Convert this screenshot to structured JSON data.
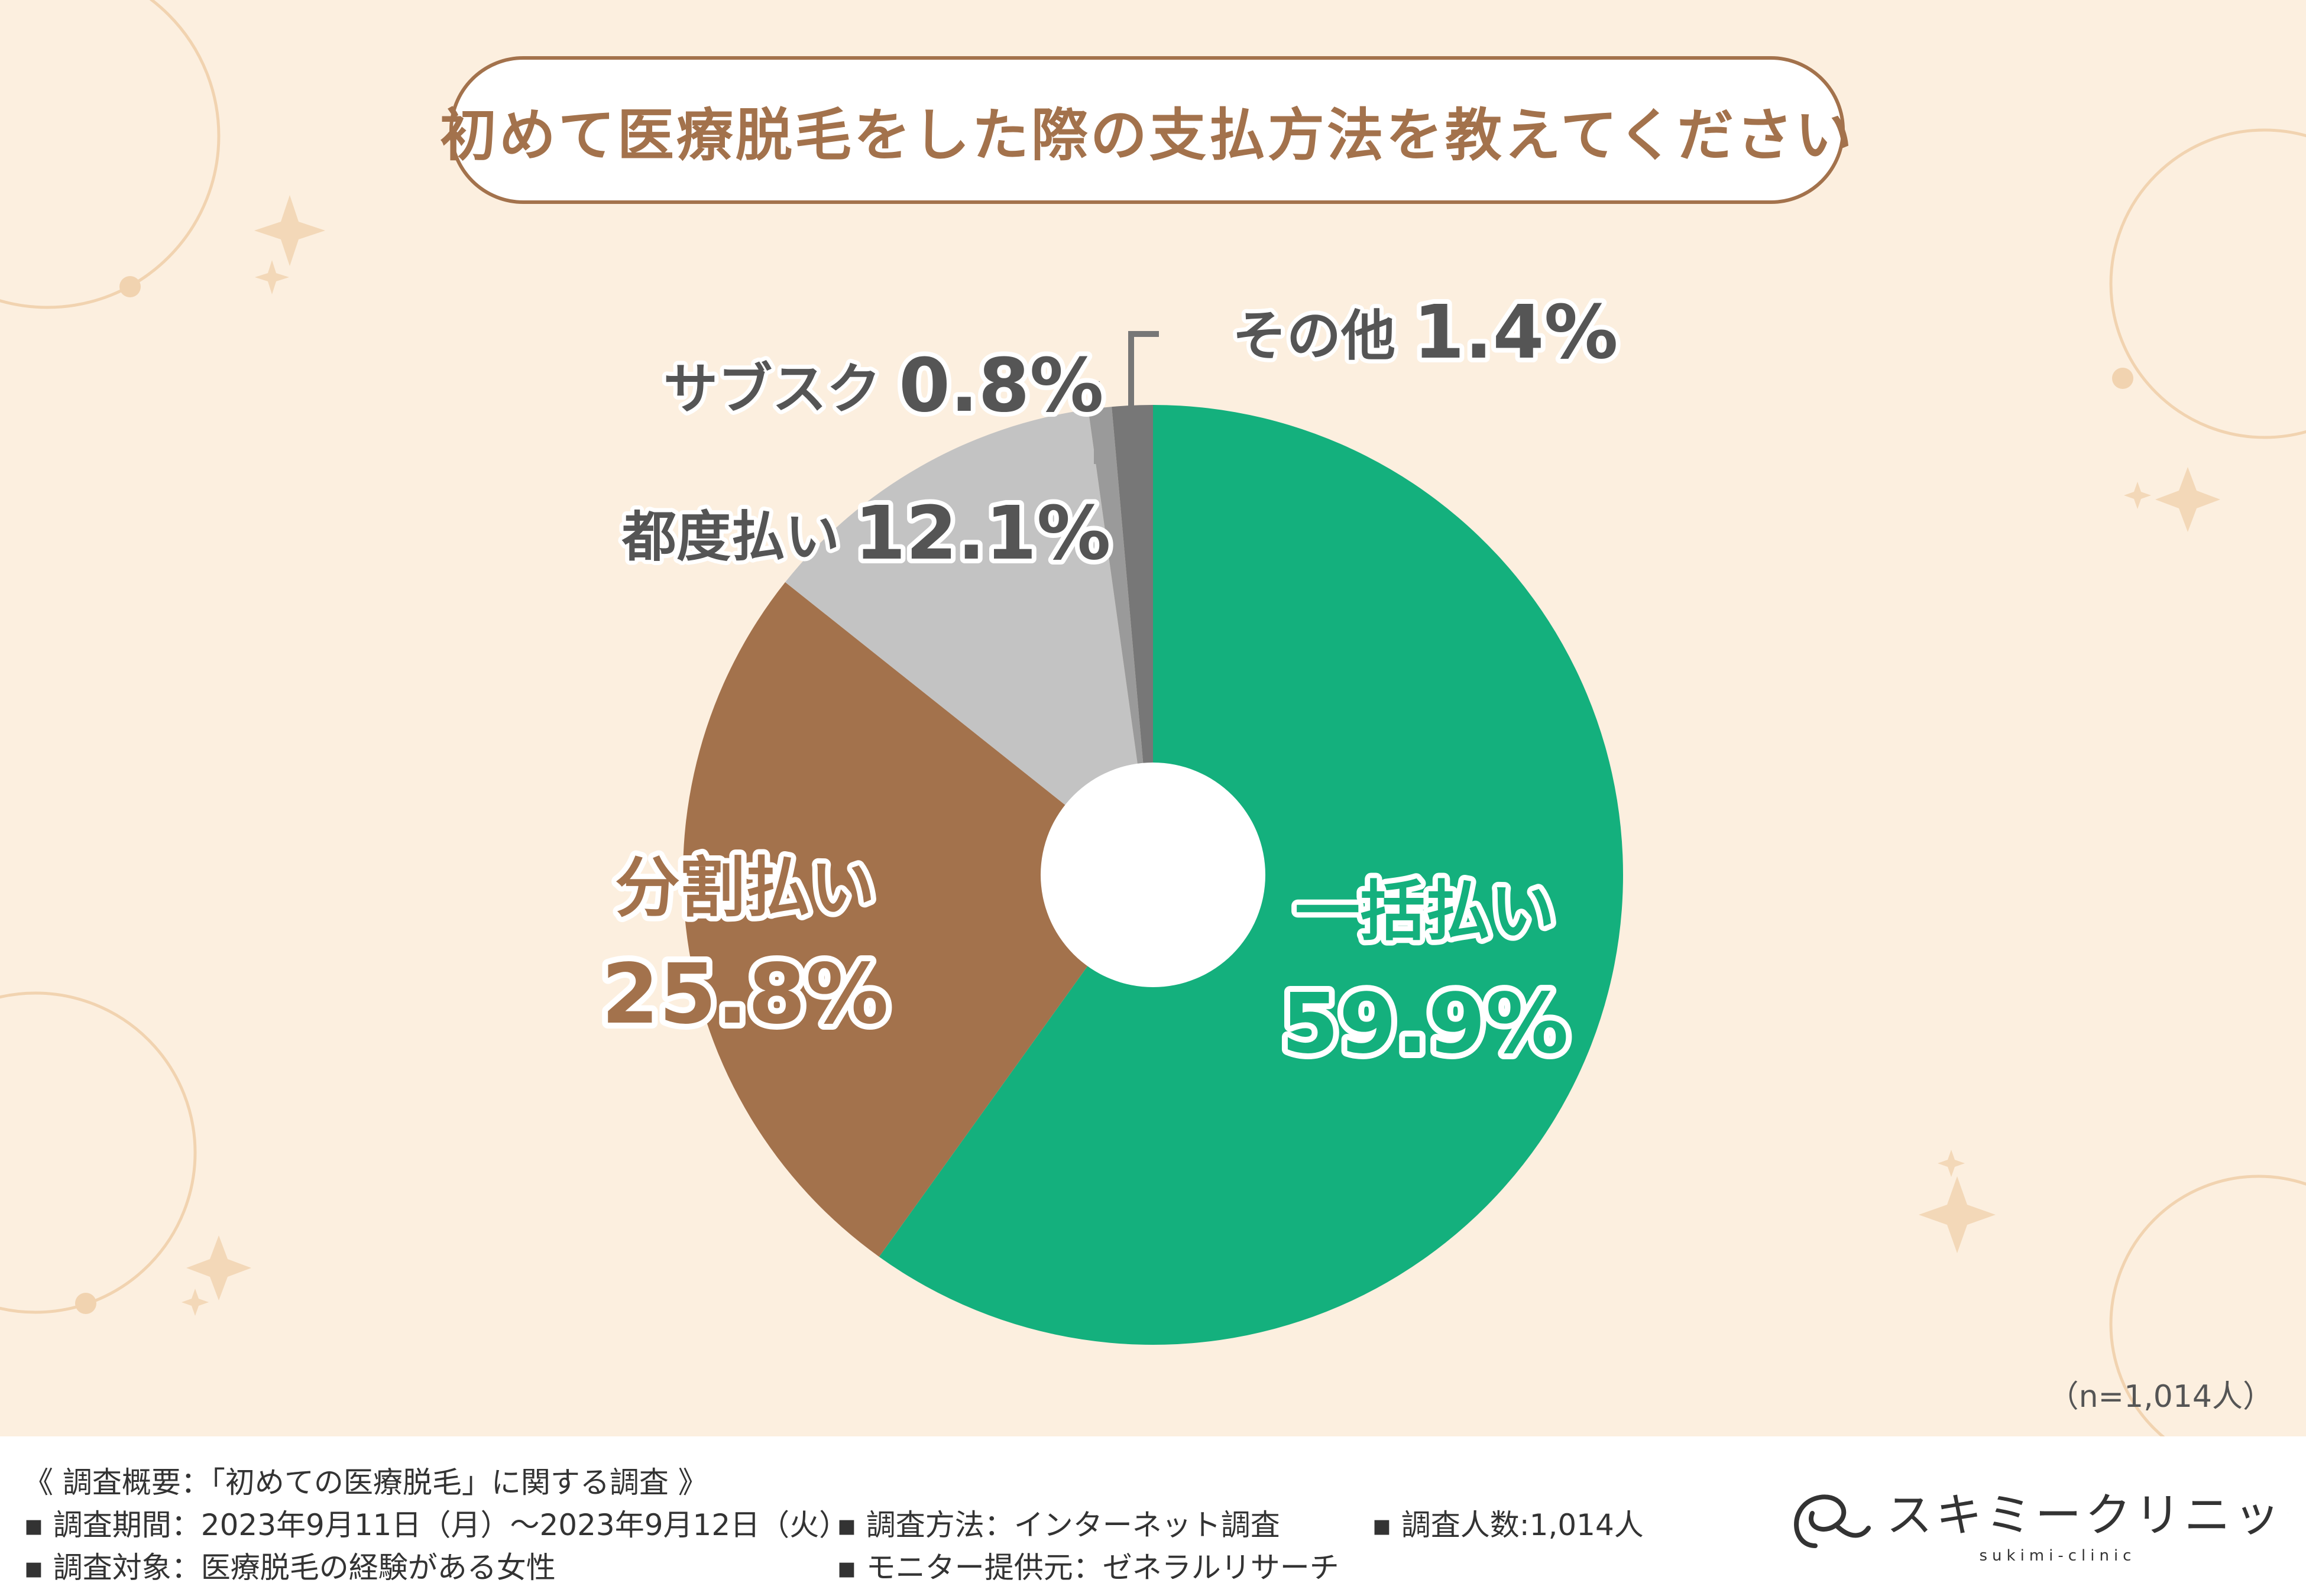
{
  "title": "初めて医療脱毛をした際の支払方法を教えてください",
  "sample_size": "（n=1,014人）",
  "colors": {
    "background": "#fcefdf",
    "accent_brown": "#a3724c",
    "green": "#14b07d",
    "light_gray": "#c3c3c3",
    "mid_gray": "#9a9a9a",
    "dark_gray": "#777777"
  },
  "chart_data": {
    "type": "pie",
    "style": "donut",
    "slices": [
      {
        "label": "一括払い",
        "value": 59.9,
        "value_text": "59.9%",
        "color": "#14b07d"
      },
      {
        "label": "分割払い",
        "value": 25.8,
        "value_text": "25.8%",
        "color": "#a3724c"
      },
      {
        "label": "都度払い",
        "value": 12.1,
        "value_text": "12.1%",
        "color": "#c3c3c3"
      },
      {
        "label": "サブスク",
        "value": 0.8,
        "value_text": "0.8%",
        "color": "#9a9a9a"
      },
      {
        "label": "その他",
        "value": 1.4,
        "value_text": "1.4%",
        "color": "#777777"
      }
    ]
  },
  "footer": {
    "overview": "《 調査概要：「初めての医療脱毛」に関する調査 》",
    "period": "調査期間：2023年9月11日（月）～2023年9月12日（火）",
    "method": "調査方法：インターネット調査",
    "count": "調査人数:1,014人",
    "target": "調査対象：医療脱毛の経験がある女性",
    "provider": "モニター提供元：ゼネラルリサーチ"
  },
  "brand": {
    "name": "スキミークリニック",
    "sub": "sukimi-clinic"
  }
}
